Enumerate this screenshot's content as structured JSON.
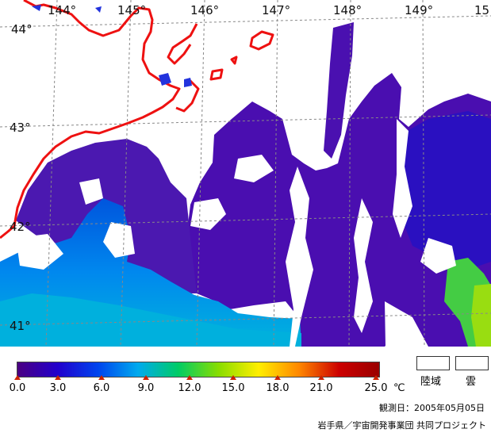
{
  "map": {
    "longitude_labels": [
      "144°",
      "145°",
      "146°",
      "147°",
      "148°",
      "149°",
      "15"
    ],
    "latitude_labels": [
      "44°",
      "43°",
      "42°",
      "41°"
    ],
    "colors": {
      "coastline": "#ee1111",
      "land_cloud": "#ffffff",
      "cold_water": "#4a00b0",
      "grid": "#888888"
    }
  },
  "legend": {
    "tick_labels": [
      "0.0",
      "3.0",
      "6.0",
      "9.0",
      "12.0",
      "15.0",
      "18.0",
      "21.0",
      "25.0"
    ],
    "unit": "℃",
    "land_label": "陸域",
    "cloud_label": "雲",
    "gradient_colors": [
      "#4b0082",
      "#2200cc",
      "#0044ee",
      "#00aaee",
      "#00cc66",
      "#88dd00",
      "#ffee00",
      "#ff8800",
      "#cc0000",
      "#990000"
    ]
  },
  "footer": {
    "observation_date": "観測日：2005年05月05日",
    "credit": "岩手県／宇宙開発事業団 共同プロジェクト"
  }
}
